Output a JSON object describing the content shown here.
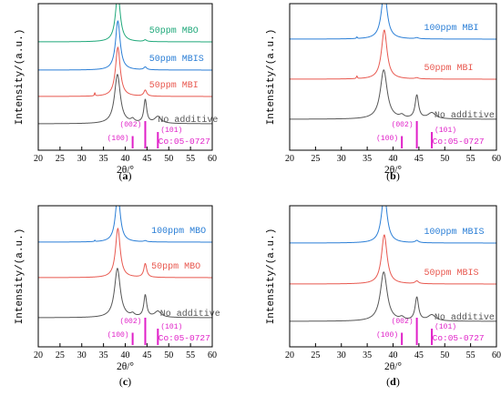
{
  "chart_data": [
    {
      "type": "line",
      "panel_label": "(a)",
      "xlabel": "2θ/°",
      "ylabel": "Intensity/(a.u.)",
      "xlim": [
        20,
        60
      ],
      "xticks": [
        20,
        25,
        30,
        35,
        40,
        45,
        50,
        55,
        60
      ],
      "reference": {
        "label": "Co:05-0727",
        "color": "#e020c8",
        "peaks": [
          {
            "x": 41.7,
            "rel": 0.45,
            "label": "(100)"
          },
          {
            "x": 44.6,
            "rel": 1.0,
            "label": "(002)"
          },
          {
            "x": 47.5,
            "rel": 0.6,
            "label": "(101)"
          }
        ]
      },
      "series": [
        {
          "name": "No additive",
          "color": "#555555",
          "peaks": [
            [
              38.2,
              1.8,
              0.8
            ],
            [
              41.7,
              0.12,
              0.5
            ],
            [
              44.6,
              0.85,
              0.4
            ],
            [
              47.5,
              0.25,
              0.9
            ]
          ]
        },
        {
          "name": "50ppm MBI",
          "color": "#e8584f",
          "peaks": [
            [
              33.0,
              0.12,
              0.1
            ],
            [
              38.3,
              1.8,
              0.65
            ],
            [
              44.6,
              0.22,
              0.4
            ]
          ]
        },
        {
          "name": "50ppm MBIS",
          "color": "#2a7ed6",
          "peaks": [
            [
              38.3,
              1.8,
              0.65
            ],
            [
              44.6,
              0.1,
              0.4
            ]
          ]
        },
        {
          "name": "50ppm MBO",
          "color": "#1fa87a",
          "peaks": [
            [
              38.3,
              1.8,
              0.65
            ],
            [
              44.6,
              0.06,
              0.4
            ]
          ]
        }
      ]
    },
    {
      "type": "line",
      "panel_label": "(b)",
      "xlabel": "2θ/°",
      "ylabel": "Intensity/(a.u.)",
      "xlim": [
        20,
        60
      ],
      "xticks": [
        20,
        25,
        30,
        35,
        40,
        45,
        50,
        55,
        60
      ],
      "reference": {
        "label": "Co:05-0727",
        "color": "#e020c8",
        "peaks": [
          {
            "x": 41.7,
            "rel": 0.45,
            "label": "(100)"
          },
          {
            "x": 44.6,
            "rel": 1.0,
            "label": "(002)"
          },
          {
            "x": 47.5,
            "rel": 0.6,
            "label": "(101)"
          }
        ]
      },
      "series": [
        {
          "name": "No additive",
          "color": "#555555",
          "peaks": [
            [
              38.2,
              1.8,
              0.8
            ],
            [
              41.7,
              0.1,
              0.5
            ],
            [
              44.6,
              0.85,
              0.4
            ],
            [
              47.5,
              0.22,
              0.9
            ]
          ]
        },
        {
          "name": "50ppm MBI",
          "color": "#e8584f",
          "peaks": [
            [
              33.0,
              0.1,
              0.1
            ],
            [
              38.3,
              1.8,
              0.65
            ],
            [
              44.6,
              0.04,
              0.4
            ]
          ]
        },
        {
          "name": "100ppm MBI",
          "color": "#2a7ed6",
          "peaks": [
            [
              33.0,
              0.06,
              0.1
            ],
            [
              38.3,
              1.8,
              0.65
            ],
            [
              44.6,
              0.04,
              0.4
            ]
          ]
        }
      ]
    },
    {
      "type": "line",
      "panel_label": "(c)",
      "xlabel": "2θ/°",
      "ylabel": "Intensity/(a.u.)",
      "xlim": [
        20,
        60
      ],
      "xticks": [
        20,
        25,
        30,
        35,
        40,
        45,
        50,
        55,
        60
      ],
      "reference": {
        "label": "Co:05-0727",
        "color": "#e020c8",
        "peaks": [
          {
            "x": 41.7,
            "rel": 0.45,
            "label": "(100)"
          },
          {
            "x": 44.6,
            "rel": 1.0,
            "label": "(002)"
          },
          {
            "x": 47.5,
            "rel": 0.6,
            "label": "(101)"
          }
        ]
      },
      "series": [
        {
          "name": "No additive",
          "color": "#555555",
          "peaks": [
            [
              38.2,
              1.8,
              0.8
            ],
            [
              41.7,
              0.1,
              0.5
            ],
            [
              44.6,
              0.8,
              0.4
            ],
            [
              47.5,
              0.22,
              0.9
            ]
          ]
        },
        {
          "name": "50ppm MBO",
          "color": "#e8584f",
          "peaks": [
            [
              38.3,
              1.8,
              0.65
            ],
            [
              44.6,
              0.5,
              0.4
            ]
          ]
        },
        {
          "name": "100ppm MBO",
          "color": "#2a7ed6",
          "peaks": [
            [
              33.0,
              0.05,
              0.1
            ],
            [
              38.3,
              1.8,
              0.65
            ],
            [
              44.6,
              0.04,
              0.4
            ]
          ]
        }
      ]
    },
    {
      "type": "line",
      "panel_label": "(d)",
      "xlabel": "2θ/°",
      "ylabel": "Intensity/(a.u.)",
      "xlim": [
        20,
        60
      ],
      "xticks": [
        20,
        25,
        30,
        35,
        40,
        45,
        50,
        55,
        60
      ],
      "reference": {
        "label": "Co:05-0727",
        "color": "#e020c8",
        "peaks": [
          {
            "x": 41.7,
            "rel": 0.45,
            "label": "(100)"
          },
          {
            "x": 44.6,
            "rel": 1.0,
            "label": "(002)"
          },
          {
            "x": 47.5,
            "rel": 0.6,
            "label": "(101)"
          }
        ]
      },
      "series": [
        {
          "name": "No additive",
          "color": "#555555",
          "peaks": [
            [
              38.2,
              1.8,
              0.8
            ],
            [
              41.7,
              0.1,
              0.5
            ],
            [
              44.6,
              0.85,
              0.4
            ],
            [
              47.5,
              0.22,
              0.9
            ]
          ]
        },
        {
          "name": "50ppm MBIS",
          "color": "#e8584f",
          "peaks": [
            [
              38.3,
              1.8,
              0.65
            ],
            [
              44.6,
              0.1,
              0.4
            ]
          ]
        },
        {
          "name": "100ppm MBIS",
          "color": "#2a7ed6",
          "peaks": [
            [
              38.3,
              1.8,
              0.65
            ],
            [
              44.6,
              0.08,
              0.4
            ]
          ]
        }
      ]
    }
  ]
}
